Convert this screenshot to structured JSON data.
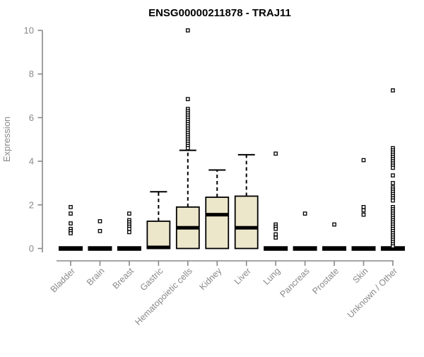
{
  "chart_data": {
    "type": "boxplot",
    "title": "ENSG00000211878 - TRAJ11",
    "ylabel": "Expression",
    "xlabel": "",
    "ylim": [
      0,
      10
    ],
    "yticks": [
      0,
      2,
      4,
      6,
      8,
      10
    ],
    "grid": false,
    "legend": null,
    "colors": {
      "box_fill": "#ECE6CB",
      "box_stroke": "#000000",
      "median": "#000000",
      "axis": "#898989",
      "tick_label": "#898989",
      "title": "#000000",
      "background": "#ffffff"
    },
    "categories": [
      "Bladder",
      "Brain",
      "Breast",
      "Gastric",
      "Hematopoietic cells",
      "Kidney",
      "Liver",
      "Lung",
      "Pancreas",
      "Prostate",
      "Skin",
      "Unknown / Other"
    ],
    "boxes": [
      {
        "label": "Bladder",
        "shape": "flat",
        "median": 0,
        "q1": 0,
        "q3": 0,
        "whisker_low": 0,
        "whisker_high": 0,
        "outliers": [
          1.9,
          1.6,
          1.15,
          0.9,
          0.8,
          0.7
        ]
      },
      {
        "label": "Brain",
        "shape": "flat",
        "median": 0,
        "q1": 0,
        "q3": 0,
        "whisker_low": 0,
        "whisker_high": 0,
        "outliers": [
          1.25,
          0.8
        ]
      },
      {
        "label": "Breast",
        "shape": "flat",
        "median": 0,
        "q1": 0,
        "q3": 0,
        "whisker_low": 0,
        "whisker_high": 0,
        "outliers": [
          1.6,
          1.3,
          1.2,
          1.1,
          1.0,
          0.9,
          0.75
        ]
      },
      {
        "label": "Gastric",
        "shape": "box",
        "median": 0.05,
        "q1": 0,
        "q3": 1.25,
        "whisker_low": 0,
        "whisker_high": 2.6,
        "outliers": []
      },
      {
        "label": "Hematopoietic cells",
        "shape": "box",
        "median": 0.95,
        "q1": 0,
        "q3": 1.9,
        "whisker_low": 0,
        "whisker_high": 4.5,
        "outliers": [
          10.0,
          6.85,
          6.4,
          6.3,
          6.2,
          6.1,
          6.0,
          5.9,
          5.8,
          5.7,
          5.6,
          5.5,
          5.4,
          5.3,
          5.2,
          5.1,
          5.0,
          4.9,
          4.8,
          4.7,
          4.6
        ]
      },
      {
        "label": "Kidney",
        "shape": "box",
        "median": 1.55,
        "q1": 0,
        "q3": 2.35,
        "whisker_low": 0,
        "whisker_high": 3.6,
        "outliers": []
      },
      {
        "label": "Liver",
        "shape": "box",
        "median": 0.95,
        "q1": 0,
        "q3": 2.4,
        "whisker_low": 0,
        "whisker_high": 4.3,
        "outliers": []
      },
      {
        "label": "Lung",
        "shape": "flat",
        "median": 0,
        "q1": 0,
        "q3": 0,
        "whisker_low": 0,
        "whisker_high": 0,
        "outliers": [
          4.35,
          1.1,
          1.0,
          0.9,
          0.65,
          0.5
        ]
      },
      {
        "label": "Pancreas",
        "shape": "flat",
        "median": 0,
        "q1": 0,
        "q3": 0,
        "whisker_low": 0,
        "whisker_high": 0,
        "outliers": [
          1.6
        ]
      },
      {
        "label": "Prostate",
        "shape": "flat",
        "median": 0,
        "q1": 0,
        "q3": 0,
        "whisker_low": 0,
        "whisker_high": 0,
        "outliers": [
          1.1
        ]
      },
      {
        "label": "Skin",
        "shape": "flat",
        "median": 0,
        "q1": 0,
        "q3": 0,
        "whisker_low": 0,
        "whisker_high": 0,
        "outliers": [
          4.05,
          1.9,
          1.75,
          1.55
        ]
      },
      {
        "label": "Unknown / Other",
        "shape": "flat",
        "median": 0,
        "q1": 0,
        "q3": 0,
        "whisker_low": 0,
        "whisker_high": 0,
        "outliers": [
          7.25,
          4.6,
          4.5,
          4.4,
          4.3,
          4.2,
          4.1,
          4.0,
          3.9,
          3.8,
          3.7,
          3.35,
          3.0,
          2.8,
          2.7,
          2.6,
          2.5,
          2.4,
          2.3,
          2.2,
          1.9,
          1.8,
          1.7,
          1.6,
          1.5,
          1.4,
          1.3,
          1.2,
          1.1,
          1.0,
          0.9,
          0.8,
          0.7,
          0.6,
          0.5,
          0.4,
          0.3,
          0.2,
          0.1
        ]
      }
    ]
  }
}
